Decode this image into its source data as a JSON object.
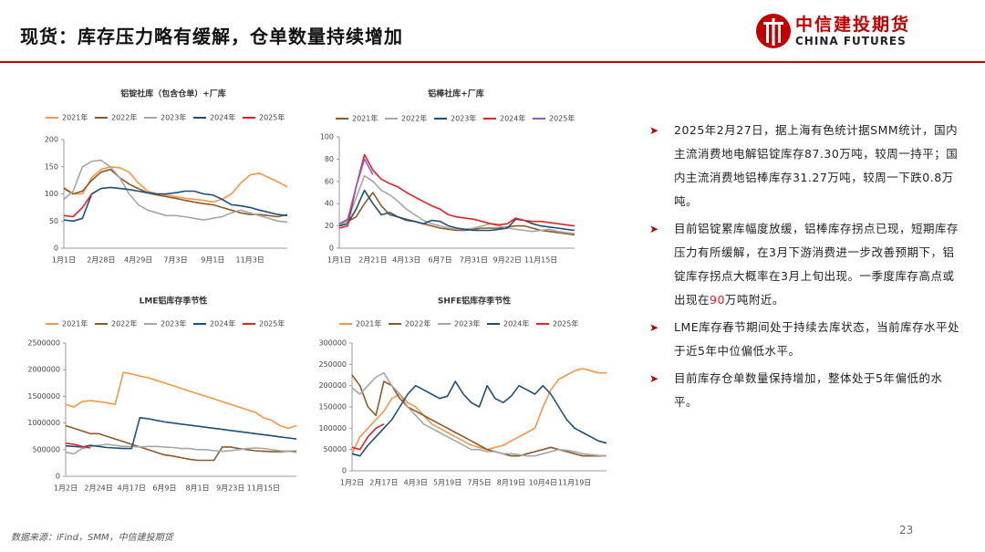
{
  "header": {
    "title": "现货：库存压力略有缓解，仓单数量持续增加",
    "logo_cn": "中信建投期货",
    "logo_en": "CHINA FUTURES"
  },
  "chart_data": [
    {
      "type": "line",
      "title": "铝锭社库（包含仓单）+厂库",
      "categories": [
        "1月1日",
        null,
        null,
        null,
        "2月28日",
        null,
        null,
        null,
        "4月29日",
        null,
        null,
        null,
        "7月3日",
        null,
        null,
        null,
        "9月1日",
        null,
        null,
        null,
        "11月3日",
        null,
        null,
        null,
        null
      ],
      "ylim": [
        0,
        200
      ],
      "yticks": [
        0,
        50,
        100,
        150,
        200
      ],
      "series": [
        {
          "name": "2021年",
          "color": "#f79646",
          "values": [
            112,
            100,
            100,
            130,
            145,
            150,
            148,
            140,
            120,
            105,
            100,
            98,
            95,
            92,
            90,
            88,
            85,
            90,
            100,
            120,
            135,
            138,
            130,
            122,
            113
          ]
        },
        {
          "name": "2022年",
          "color": "#8b5a2b",
          "values": [
            110,
            100,
            105,
            125,
            140,
            145,
            130,
            118,
            110,
            102,
            98,
            95,
            92,
            88,
            85,
            82,
            80,
            75,
            70,
            65,
            62,
            62,
            60,
            58,
            62
          ]
        },
        {
          "name": "2023年",
          "color": "#a6a6a6",
          "values": [
            90,
            105,
            150,
            160,
            162,
            150,
            130,
            100,
            80,
            70,
            65,
            60,
            60,
            58,
            55,
            52,
            55,
            58,
            65,
            70,
            65,
            60,
            55,
            50,
            48
          ]
        },
        {
          "name": "2024年",
          "color": "#1f4e79",
          "values": [
            52,
            50,
            55,
            100,
            110,
            112,
            110,
            108,
            105,
            102,
            100,
            100,
            102,
            105,
            105,
            100,
            98,
            90,
            80,
            78,
            75,
            70,
            66,
            62,
            60
          ]
        },
        {
          "name": "2025年",
          "color": "#e8202a",
          "values": [
            60,
            58,
            75,
            100,
            null,
            null,
            null,
            null,
            null,
            null,
            null,
            null,
            null,
            null,
            null,
            null,
            null,
            null,
            null,
            null,
            null,
            null,
            null,
            null,
            null
          ]
        }
      ]
    },
    {
      "type": "line",
      "title": "铝棒社库+厂库",
      "categories": [
        "1月1日",
        null,
        null,
        null,
        "2月21日",
        null,
        null,
        null,
        "4月13日",
        null,
        null,
        null,
        "6月7日",
        null,
        null,
        null,
        "7月31日",
        null,
        null,
        null,
        "9月22日",
        null,
        null,
        null,
        "11月15日",
        null,
        null,
        null,
        null
      ],
      "ylim": [
        0,
        100
      ],
      "yticks": [
        0,
        20,
        40,
        60,
        80,
        100
      ],
      "series": [
        {
          "name": "2021年",
          "color": "#8b5a2b",
          "values": [
            22,
            24,
            28,
            40,
            50,
            38,
            30,
            28,
            26,
            24,
            22,
            20,
            18,
            17,
            16,
            16,
            17,
            18,
            18,
            18,
            19,
            20,
            20,
            18,
            16,
            15,
            14,
            13,
            12
          ]
        },
        {
          "name": "2022年",
          "color": "#a6a6a6",
          "values": [
            20,
            25,
            45,
            65,
            60,
            52,
            48,
            42,
            35,
            30,
            25,
            22,
            20,
            18,
            17,
            17,
            18,
            20,
            22,
            20,
            18,
            17,
            16,
            15,
            16,
            17,
            15,
            14,
            13
          ]
        },
        {
          "name": "2023年",
          "color": "#1f4e79",
          "values": [
            20,
            22,
            35,
            52,
            40,
            30,
            32,
            28,
            25,
            24,
            22,
            25,
            24,
            20,
            18,
            17,
            16,
            16,
            16,
            17,
            18,
            26,
            25,
            22,
            20,
            19,
            18,
            17,
            16
          ]
        },
        {
          "name": "2024年",
          "color": "#e8202a",
          "values": [
            18,
            20,
            55,
            84,
            70,
            62,
            58,
            55,
            50,
            46,
            42,
            38,
            35,
            30,
            28,
            27,
            26,
            24,
            22,
            21,
            22,
            27,
            25,
            24,
            24,
            23,
            22,
            21,
            20
          ]
        },
        {
          "name": "2025年",
          "color": "#8e5bc4",
          "values": [
            22,
            26,
            55,
            80,
            66,
            null,
            null,
            null,
            null,
            null,
            null,
            null,
            null,
            null,
            null,
            null,
            null,
            null,
            null,
            null,
            null,
            null,
            null,
            null,
            null,
            null,
            null,
            null,
            null
          ]
        }
      ]
    },
    {
      "type": "line",
      "title": "LME铝库存季节性",
      "categories": [
        "1月2日",
        null,
        null,
        null,
        "2月24日",
        null,
        null,
        null,
        "4月17日",
        null,
        null,
        null,
        "6月9日",
        null,
        null,
        null,
        "8月1日",
        null,
        null,
        null,
        "9月23日",
        null,
        null,
        null,
        "11月15日",
        null,
        null,
        null,
        null
      ],
      "ylim": [
        0,
        2500000
      ],
      "yticks": [
        0,
        500000,
        1000000,
        1500000,
        2000000,
        2500000
      ],
      "series": [
        {
          "name": "2021年",
          "color": "#f79646",
          "values": [
            1350000,
            1300000,
            1400000,
            1420000,
            1400000,
            1380000,
            1350000,
            1950000,
            1920000,
            1880000,
            1850000,
            1800000,
            1750000,
            1700000,
            1650000,
            1600000,
            1550000,
            1500000,
            1450000,
            1400000,
            1350000,
            1300000,
            1250000,
            1200000,
            1100000,
            1050000,
            950000,
            900000,
            950000
          ]
        },
        {
          "name": "2022年",
          "color": "#8b5a2b",
          "values": [
            950000,
            900000,
            850000,
            800000,
            800000,
            750000,
            700000,
            650000,
            600000,
            550000,
            500000,
            450000,
            400000,
            380000,
            350000,
            320000,
            300000,
            300000,
            300000,
            550000,
            550000,
            520000,
            500000,
            480000,
            470000,
            460000,
            460000,
            470000,
            470000
          ]
        },
        {
          "name": "2023年",
          "color": "#a6a6a6",
          "values": [
            450000,
            420000,
            520000,
            560000,
            580000,
            600000,
            580000,
            560000,
            560000,
            550000,
            560000,
            560000,
            550000,
            540000,
            520000,
            520000,
            500000,
            500000,
            480000,
            470000,
            480000,
            500000,
            520000,
            530000,
            520000,
            500000,
            480000,
            470000,
            450000
          ]
        },
        {
          "name": "2024年",
          "color": "#1f4e79",
          "values": [
            570000,
            560000,
            550000,
            580000,
            560000,
            540000,
            530000,
            520000,
            520000,
            1100000,
            1080000,
            1050000,
            1020000,
            1000000,
            980000,
            960000,
            940000,
            920000,
            900000,
            880000,
            860000,
            840000,
            820000,
            800000,
            780000,
            760000,
            740000,
            720000,
            700000
          ]
        },
        {
          "name": "2025年",
          "color": "#e8202a",
          "values": [
            620000,
            600000,
            560000,
            530000,
            null,
            null,
            null,
            null,
            null,
            null,
            null,
            null,
            null,
            null,
            null,
            null,
            null,
            null,
            null,
            null,
            null,
            null,
            null,
            null,
            null,
            null,
            null,
            null,
            null
          ]
        }
      ]
    },
    {
      "type": "line",
      "title": "SHFE铝库存季节性",
      "categories": [
        "1月2日",
        null,
        null,
        null,
        "2月17日",
        null,
        null,
        null,
        "4月3日",
        null,
        null,
        null,
        "5月19日",
        null,
        null,
        null,
        "7月5日",
        null,
        null,
        null,
        "8月19日",
        null,
        null,
        null,
        "10月4日",
        null,
        null,
        null,
        "11月19日",
        null,
        null,
        null,
        null
      ],
      "ylim": [
        0,
        300000
      ],
      "yticks": [
        0,
        50000,
        100000,
        150000,
        200000,
        250000,
        300000
      ],
      "series": [
        {
          "name": "2021年",
          "color": "#f79646",
          "values": [
            40000,
            80000,
            100000,
            120000,
            140000,
            170000,
            180000,
            160000,
            150000,
            130000,
            110000,
            100000,
            90000,
            80000,
            70000,
            60000,
            55000,
            50000,
            55000,
            60000,
            70000,
            80000,
            90000,
            100000,
            150000,
            190000,
            215000,
            225000,
            235000,
            240000,
            235000,
            230000,
            230000
          ]
        },
        {
          "name": "2022年",
          "color": "#8b5a2b",
          "values": [
            225000,
            200000,
            150000,
            130000,
            210000,
            200000,
            170000,
            150000,
            140000,
            130000,
            120000,
            110000,
            100000,
            90000,
            80000,
            70000,
            60000,
            50000,
            45000,
            40000,
            35000,
            35000,
            40000,
            45000,
            50000,
            55000,
            50000,
            45000,
            40000,
            35000,
            35000,
            35000,
            35000
          ]
        },
        {
          "name": "2023年",
          "color": "#a6a6a6",
          "values": [
            195000,
            180000,
            200000,
            220000,
            230000,
            200000,
            180000,
            150000,
            130000,
            110000,
            100000,
            90000,
            80000,
            70000,
            60000,
            50000,
            50000,
            45000,
            45000,
            40000,
            40000,
            38000,
            35000,
            35000,
            40000,
            45000,
            50000,
            48000,
            45000,
            40000,
            38000,
            36000,
            35000
          ]
        },
        {
          "name": "2024年",
          "color": "#1f4e79",
          "values": [
            40000,
            35000,
            60000,
            80000,
            100000,
            120000,
            150000,
            180000,
            200000,
            190000,
            180000,
            170000,
            175000,
            210000,
            180000,
            160000,
            150000,
            200000,
            170000,
            160000,
            175000,
            200000,
            190000,
            180000,
            200000,
            180000,
            150000,
            120000,
            100000,
            90000,
            80000,
            70000,
            65000
          ]
        },
        {
          "name": "2025年",
          "color": "#e8202a",
          "values": [
            55000,
            50000,
            80000,
            100000,
            110000,
            null,
            null,
            null,
            null,
            null,
            null,
            null,
            null,
            null,
            null,
            null,
            null,
            null,
            null,
            null,
            null,
            null,
            null,
            null,
            null,
            null,
            null,
            null,
            null,
            null,
            null,
            null,
            null
          ]
        }
      ]
    }
  ],
  "bullets": [
    [
      "2025年2月27日，据上海有色统计据SMM统计，国内主流消费地电解铝锭库存87.30万吨，较周一持平；国内主流消费地铝棒库存31.27万吨，较周一下跌0.8万吨。"
    ],
    [
      "目前铝锭累库幅度放缓，铝棒库存拐点已现，短期库存压力有所缓解，在3月下游消费进一步改善预期下，铝锭库存拐点大概率在3月上旬出现。一季度库存高点或出现在",
      "90",
      "万吨附近。"
    ],
    [
      "LME库存春节期间处于持续去库状态，当前库存水平处于近5年中位偏低水平。"
    ],
    [
      "目前库存仓单数量保持增加，整体处于5年偏低的水平。"
    ]
  ],
  "footer": {
    "source": "数据来源：iFind，SMM，中信建投期货",
    "page": "23"
  }
}
